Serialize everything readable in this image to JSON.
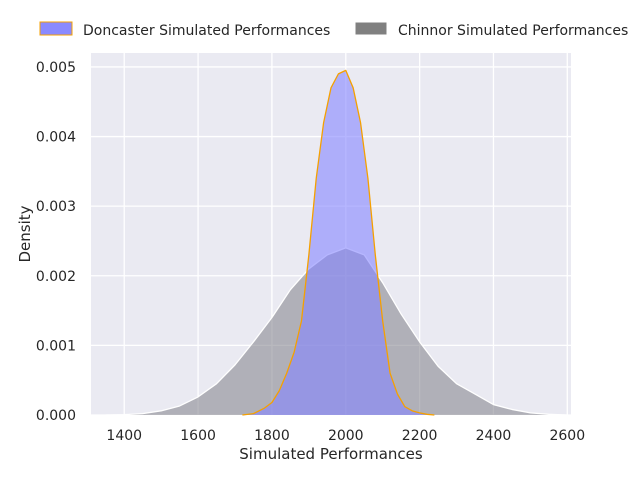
{
  "chart_data": {
    "type": "area",
    "title": "",
    "xlabel": "Simulated Performances",
    "ylabel": "Density",
    "xlim": [
      1310,
      2610
    ],
    "ylim": [
      0,
      0.0052
    ],
    "xticks": [
      1400,
      1600,
      1800,
      2000,
      2200,
      2400,
      2600
    ],
    "yticks": [
      0.0,
      0.001,
      0.002,
      0.003,
      0.004,
      0.005
    ],
    "ytick_labels": [
      "0.000",
      "0.001",
      "0.002",
      "0.003",
      "0.004",
      "0.005"
    ],
    "grid": true,
    "legend_position": "top",
    "series": [
      {
        "name": "Doncaster Simulated Performances",
        "fill_color": "#8585ff",
        "legend_color": "#8a8aff",
        "edge_color": "#f5a000",
        "x": [
          1720,
          1750,
          1780,
          1800,
          1820,
          1840,
          1860,
          1880,
          1900,
          1920,
          1940,
          1960,
          1980,
          2000,
          2020,
          2040,
          2060,
          2080,
          2100,
          2120,
          2140,
          2160,
          2180,
          2200,
          2220,
          2240
        ],
        "y": [
          0.0,
          2e-05,
          0.0001,
          0.00018,
          0.00035,
          0.0006,
          0.0009,
          0.00135,
          0.0023,
          0.0034,
          0.0042,
          0.0047,
          0.0049,
          0.00495,
          0.0047,
          0.0042,
          0.0034,
          0.0023,
          0.00135,
          0.0006,
          0.0003,
          0.00012,
          6e-05,
          3e-05,
          1e-05,
          0.0
        ]
      },
      {
        "name": "Chinnor Simulated Performances",
        "fill_color": "#7f7f88",
        "legend_color": "#808080",
        "edge_color": "#ffffff",
        "x": [
          1350,
          1400,
          1450,
          1500,
          1550,
          1600,
          1650,
          1700,
          1750,
          1800,
          1850,
          1900,
          1950,
          2000,
          2050,
          2100,
          2150,
          2200,
          2250,
          2300,
          2350,
          2400,
          2450,
          2500,
          2550,
          2600
        ],
        "y": [
          0.0,
          5e-06,
          2e-05,
          6e-05,
          0.00013,
          0.00026,
          0.00045,
          0.00072,
          0.00105,
          0.0014,
          0.0018,
          0.0021,
          0.0023,
          0.0024,
          0.0023,
          0.0019,
          0.00145,
          0.00105,
          0.0007,
          0.00045,
          0.0003,
          0.00015,
          8e-05,
          3e-05,
          1e-05,
          0.0
        ]
      }
    ]
  }
}
